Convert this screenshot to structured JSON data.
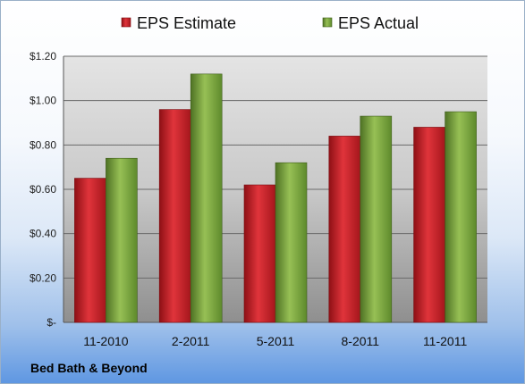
{
  "chart_data": {
    "type": "bar",
    "categories": [
      "11-2010",
      "2-2011",
      "5-2011",
      "8-2011",
      "11-2011"
    ],
    "series": [
      {
        "name": "EPS Estimate",
        "values": [
          0.65,
          0.96,
          0.62,
          0.84,
          0.88
        ],
        "color": "#c0272d"
      },
      {
        "name": "EPS Actual",
        "values": [
          0.74,
          1.12,
          0.72,
          0.93,
          0.95
        ],
        "color": "#7aa33c"
      }
    ],
    "y_ticks": [
      {
        "value": 1.2,
        "label": "$1.20"
      },
      {
        "value": 1.0,
        "label": "$1.00"
      },
      {
        "value": 0.8,
        "label": "$0.80"
      },
      {
        "value": 0.6,
        "label": "$0.60"
      },
      {
        "value": 0.4,
        "label": "$0.40"
      },
      {
        "value": 0.2,
        "label": "$0.20"
      },
      {
        "value": 0.0,
        "label": "$-"
      }
    ],
    "ylim": [
      0,
      1.2
    ],
    "grid": true,
    "legend_position": "top"
  },
  "footer": {
    "company": "Bed Bath & Beyond"
  }
}
